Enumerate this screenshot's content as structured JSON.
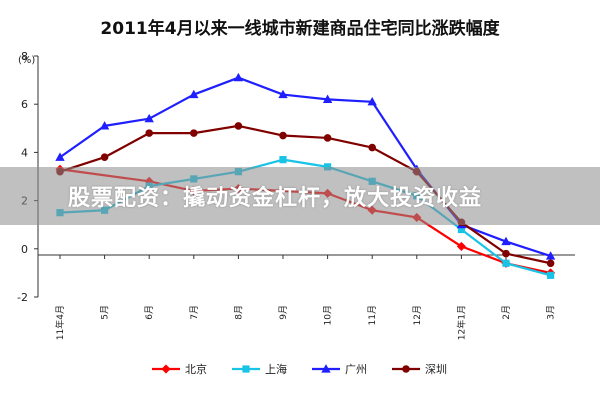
{
  "chart_data": {
    "type": "line",
    "title": "2011年4月以来一线城市新建商品住宅同比涨跌幅度",
    "ylabel": "(%)",
    "xlabel": "",
    "ylim": [
      -2,
      8
    ],
    "yticks": [
      -2,
      0,
      2,
      4,
      6,
      8
    ],
    "categories": [
      "11年4月",
      "5月",
      "6月",
      "7月",
      "8月",
      "9月",
      "10月",
      "11月",
      "12月",
      "12年1月",
      "2月",
      "3月"
    ],
    "grid": false,
    "legend_position": "bottom",
    "series": [
      {
        "name": "北京",
        "color": "#ff0000",
        "marker": "diamond",
        "values": [
          3.3,
          null,
          2.8,
          2.4,
          2.5,
          null,
          2.3,
          1.6,
          1.3,
          0.1,
          -0.6,
          -1.0
        ]
      },
      {
        "name": "上海",
        "color": "#19c3e6",
        "marker": "square",
        "values": [
          1.5,
          1.6,
          2.6,
          2.9,
          3.2,
          3.7,
          3.4,
          2.8,
          2.2,
          0.8,
          -0.6,
          -1.1
        ]
      },
      {
        "name": "广州",
        "color": "#1f1fff",
        "marker": "triangle",
        "values": [
          3.8,
          5.1,
          5.4,
          6.4,
          7.1,
          6.4,
          6.2,
          6.1,
          3.3,
          1.0,
          0.3,
          -0.3
        ]
      },
      {
        "name": "深圳",
        "color": "#800000",
        "marker": "circle",
        "values": [
          3.2,
          3.8,
          4.8,
          4.8,
          5.1,
          4.7,
          4.6,
          4.2,
          3.2,
          1.1,
          -0.2,
          -0.6
        ]
      }
    ]
  },
  "overlay": {
    "text": "股票配资：撬动资金杠杆，放大投资收益"
  }
}
